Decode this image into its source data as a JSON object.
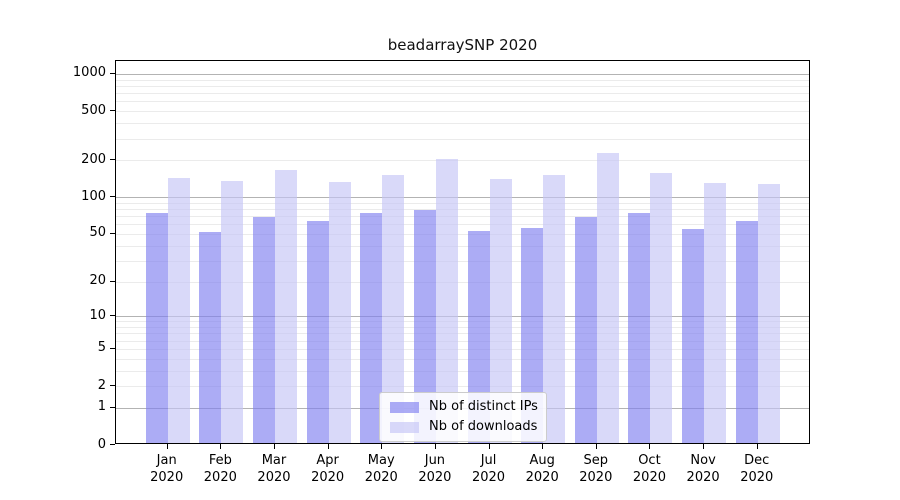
{
  "chart_data": {
    "type": "bar",
    "title": "beadarraySNP 2020",
    "categories": [
      "Jan",
      "Feb",
      "Mar",
      "Apr",
      "May",
      "Jun",
      "Jul",
      "Aug",
      "Sep",
      "Oct",
      "Nov",
      "Dec"
    ],
    "category_year": "2020",
    "series": [
      {
        "name": "Nb of distinct IPs",
        "color": "rgba(127,127,240,0.65)",
        "values": [
          72,
          50,
          66,
          61,
          71,
          76,
          51,
          54,
          66,
          72,
          53,
          61
        ]
      },
      {
        "name": "Nb of downloads",
        "color": "rgba(197,197,246,0.65)",
        "values": [
          138,
          130,
          160,
          127,
          145,
          198,
          135,
          147,
          220,
          151,
          126,
          123
        ]
      }
    ],
    "y_scale": "log10(value+1)",
    "y_tick_values": [
      0,
      1,
      2,
      5,
      10,
      20,
      50,
      100,
      200,
      500,
      1000
    ],
    "y_tick_labels": [
      "0",
      "1",
      "2",
      "5",
      "10",
      "20",
      "50",
      "100",
      "200",
      "500",
      "1000"
    ],
    "y_major_gridlines": [
      1,
      10,
      100,
      1000
    ],
    "ylim": [
      0,
      1250
    ],
    "grid": "horizontal major + minor (log decades)",
    "legend_position": "inside bottom-center",
    "colors": {
      "major_grid": "#b3b3b3",
      "minor_grid": "#ebebeb",
      "axis_box": "#000000",
      "background": "#ffffff"
    }
  }
}
